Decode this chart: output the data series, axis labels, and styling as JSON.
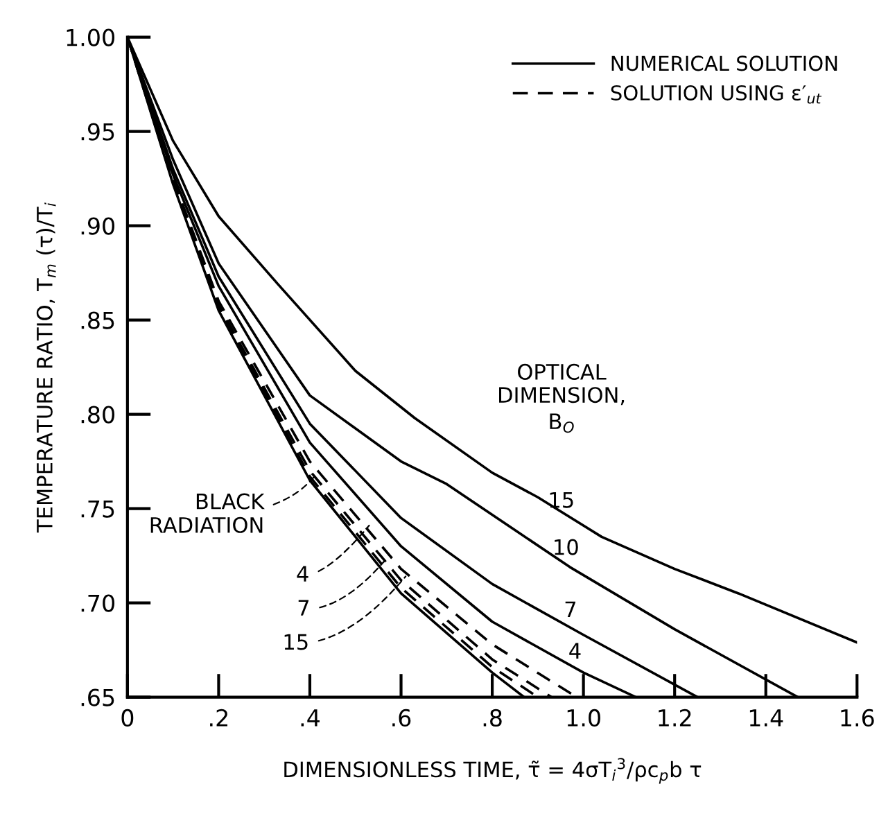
{
  "chart_data": {
    "type": "line",
    "xlabel": "DIMENSIONLESS TIME, τ̃ = 4σT$_{i}$$^{3}$/ρc$_{p}$b τ",
    "ylabel": "TEMPERATURE RATIO, T$_{m}$ (τ)/T$_{i}$",
    "xlim": [
      0,
      1.6
    ],
    "ylim": [
      0.65,
      1.0
    ],
    "xticks": [
      0,
      {
        "value": 0.2,
        "label": ".2"
      },
      {
        "value": 0.4,
        "label": ".4"
      },
      {
        "value": 0.6,
        "label": ".6"
      },
      {
        "value": 0.8,
        "label": ".8"
      },
      {
        "value": 1.0,
        "label": "1.0"
      },
      {
        "value": 1.2,
        "label": "1.2"
      },
      {
        "value": 1.4,
        "label": "1.4"
      },
      {
        "value": 1.6,
        "label": "1.6"
      }
    ],
    "yticks": [
      {
        "value": 0.65,
        "label": ".65"
      },
      {
        "value": 0.7,
        "label": ".70"
      },
      {
        "value": 0.75,
        "label": ".75"
      },
      {
        "value": 0.8,
        "label": ".80"
      },
      {
        "value": 0.85,
        "label": ".85"
      },
      {
        "value": 0.9,
        "label": ".90"
      },
      {
        "value": 0.95,
        "label": ".95"
      },
      {
        "value": 1.0,
        "label": "1.00"
      }
    ],
    "grid": false,
    "legend": "top right",
    "marker": "none",
    "series": [
      {
        "name": "NUMERICAL SOLUTION",
        "color": "#000000",
        "line_style": "solid",
        "x": [
          0,
          0.1,
          0.2,
          0.33,
          0.5,
          0.63,
          0.8,
          0.9,
          1.04,
          1.2,
          1.34,
          1.6
        ],
        "values": [
          1.0,
          0.945,
          0.905,
          0.869,
          0.823,
          0.798,
          0.769,
          0.756,
          0.735,
          0.718,
          0.705,
          0.679
        ]
      },
      {
        "color": "#000000",
        "line_style": "solid",
        "x": [
          0,
          0.1,
          0.2,
          0.4,
          0.6,
          0.7,
          0.97,
          1.2,
          1.47
        ],
        "values": [
          1.0,
          0.935,
          0.88,
          0.81,
          0.775,
          0.763,
          0.719,
          0.686,
          0.65
        ]
      },
      {
        "color": "#000000",
        "line_style": "solid",
        "x": [
          0,
          0.1,
          0.2,
          0.4,
          0.6,
          0.8,
          1.0,
          1.25
        ],
        "values": [
          1.0,
          0.93,
          0.873,
          0.795,
          0.745,
          0.71,
          0.683,
          0.65
        ]
      },
      {
        "color": "#000000",
        "line_style": "solid",
        "x": [
          0,
          0.1,
          0.2,
          0.4,
          0.6,
          0.8,
          1.0,
          1.115
        ],
        "values": [
          1.0,
          0.927,
          0.868,
          0.785,
          0.73,
          0.69,
          0.663,
          0.65
        ]
      },
      {
        "color": "#000000",
        "line_style": "solid",
        "x": [
          0,
          0.1,
          0.2,
          0.4,
          0.6,
          0.8,
          0.87
        ],
        "values": [
          1.0,
          0.922,
          0.855,
          0.765,
          0.705,
          0.663,
          0.65
        ]
      },
      {
        "name": "SOLUTION USING ε′$_{ut}$",
        "color": "#000000",
        "line_style": "dashed",
        "x": [
          0,
          0.1,
          0.2,
          0.4,
          0.6,
          0.8,
          0.985
        ],
        "values": [
          1.0,
          0.925,
          0.86,
          0.775,
          0.718,
          0.678,
          0.65
        ]
      },
      {
        "color": "#000000",
        "line_style": "dashed",
        "x": [
          0,
          0.1,
          0.2,
          0.4,
          0.6,
          0.8,
          0.93
        ],
        "values": [
          1.0,
          0.924,
          0.858,
          0.77,
          0.712,
          0.67,
          0.65
        ]
      },
      {
        "color": "#000000",
        "line_style": "dashed",
        "x": [
          0,
          0.1,
          0.2,
          0.4,
          0.6,
          0.8,
          0.9
        ],
        "values": [
          1.0,
          0.923,
          0.857,
          0.767,
          0.708,
          0.666,
          0.65
        ]
      }
    ],
    "annotations": [
      "OPTICAL",
      "DIMENSION,",
      "B$_{O}$",
      {
        "text": "15",
        "x": 0.96,
        "y": 0.742
      },
      {
        "text": "10",
        "x": 0.97,
        "y": 0.717
      },
      {
        "text": "7",
        "x": 0.98,
        "y": 0.684
      },
      {
        "text": "4",
        "x": 0.99,
        "y": 0.662
      },
      {
        "text": "BLACK\nRADIATION",
        "x": 0.41,
        "y": 0.767
      },
      {
        "text": "4",
        "x": 0.53,
        "y": 0.741
      },
      {
        "text": "7",
        "x": 0.57,
        "y": 0.724
      },
      {
        "text": "15",
        "x": 0.61,
        "y": 0.714
      }
    ]
  }
}
